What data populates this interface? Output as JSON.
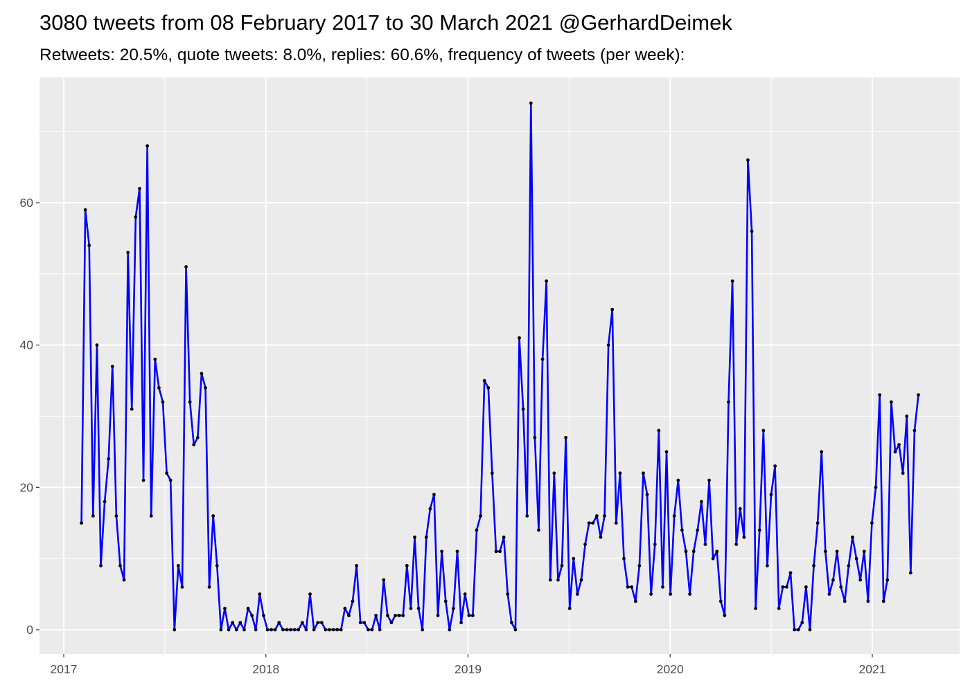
{
  "chart_data": {
    "type": "line",
    "title": "3080 tweets from 08 February 2017 to 30 March 2021 @GerhardDeimek",
    "subtitle": "Retweets: 20.5%, quote tweets: 8.0%, replies: 60.6%, frequency of tweets (per week):",
    "xlabel": "",
    "ylabel": "",
    "x_range": [
      "2017-02-08",
      "2021-03-30"
    ],
    "x_interval": "week",
    "x_ticks": [
      "2017",
      "2018",
      "2019",
      "2020",
      "2021"
    ],
    "y_ticks": [
      0,
      20,
      40,
      60
    ],
    "ylim": [
      -3.4,
      77.6
    ],
    "grid": true,
    "line_color": "#0000ff",
    "point_color": "#000000",
    "panel_color": "#ebebeb",
    "values": [
      15,
      59,
      54,
      16,
      40,
      9,
      18,
      24,
      37,
      16,
      9,
      7,
      53,
      31,
      58,
      62,
      21,
      68,
      16,
      38,
      34,
      32,
      22,
      21,
      0,
      9,
      6,
      51,
      32,
      26,
      27,
      36,
      34,
      6,
      16,
      9,
      0,
      3,
      0,
      1,
      0,
      1,
      0,
      3,
      2,
      0,
      5,
      2,
      0,
      0,
      0,
      1,
      0,
      0,
      0,
      0,
      0,
      1,
      0,
      5,
      0,
      1,
      1,
      0,
      0,
      0,
      0,
      0,
      3,
      2,
      4,
      9,
      1,
      1,
      0,
      0,
      2,
      0,
      7,
      2,
      1,
      2,
      2,
      2,
      9,
      3,
      13,
      3,
      0,
      13,
      17,
      19,
      2,
      11,
      4,
      0,
      3,
      11,
      1,
      5,
      2,
      2,
      14,
      16,
      35,
      34,
      22,
      11,
      11,
      13,
      5,
      1,
      0,
      41,
      31,
      16,
      74,
      27,
      14,
      38,
      49,
      7,
      22,
      7,
      9,
      27,
      3,
      10,
      5,
      7,
      12,
      15,
      15,
      16,
      13,
      16,
      40,
      45,
      15,
      22,
      10,
      6,
      6,
      4,
      9,
      22,
      19,
      5,
      12,
      28,
      6,
      25,
      5,
      16,
      21,
      14,
      11,
      5,
      11,
      14,
      18,
      12,
      21,
      10,
      11,
      4,
      2,
      32,
      49,
      12,
      17,
      13,
      66,
      56,
      3,
      14,
      28,
      9,
      19,
      23,
      3,
      6,
      6,
      8,
      0,
      0,
      1,
      6,
      0,
      9,
      15,
      25,
      11,
      5,
      7,
      11,
      6,
      4,
      9,
      13,
      10,
      7,
      11,
      4,
      15,
      20,
      33,
      4,
      7,
      32,
      25,
      26,
      22,
      30,
      8,
      28,
      33
    ]
  }
}
